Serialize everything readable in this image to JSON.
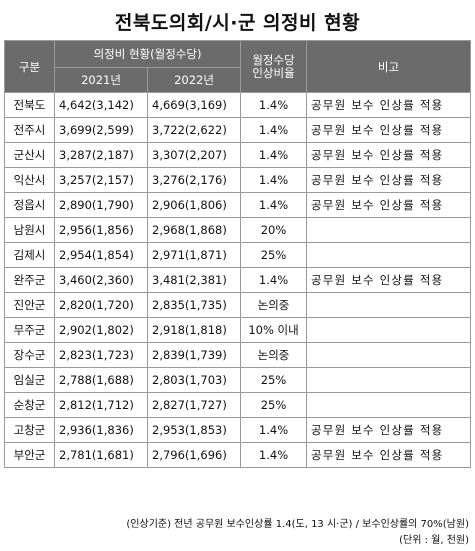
{
  "title": "전북도의회/시·군 의정비 현황",
  "headers": {
    "region": "구분",
    "allowance_group": "의정비 현황(월정수당)",
    "year_2021": "2021년",
    "year_2022": "2022년",
    "rate_line1": "월정수당",
    "rate_line2": "인상비율",
    "note": "비고"
  },
  "rows": [
    {
      "region": "전북도",
      "v2021": "4,642(3,142)",
      "v2022": "4,669(3,169)",
      "rate": "1.4%",
      "note": "공무원 보수 인상률 적용"
    },
    {
      "region": "전주시",
      "v2021": "3,699(2,599)",
      "v2022": "3,722(2,622)",
      "rate": "1.4%",
      "note": "공무원 보수 인상률 적용"
    },
    {
      "region": "군산시",
      "v2021": "3,287(2,187)",
      "v2022": "3,307(2,207)",
      "rate": "1.4%",
      "note": "공무원 보수 인상률 적용"
    },
    {
      "region": "익산시",
      "v2021": "3,257(2,157)",
      "v2022": "3,276(2,176)",
      "rate": "1.4%",
      "note": "공무원 보수 인상률 적용"
    },
    {
      "region": "정읍시",
      "v2021": "2,890(1,790)",
      "v2022": "2,906(1,806)",
      "rate": "1.4%",
      "note": "공무원 보수 인상률 적용"
    },
    {
      "region": "남원시",
      "v2021": "2,956(1,856)",
      "v2022": "2,968(1,868)",
      "rate": "20%",
      "note": ""
    },
    {
      "region": "김제시",
      "v2021": "2,954(1,854)",
      "v2022": "2,971(1,871)",
      "rate": "25%",
      "note": ""
    },
    {
      "region": "완주군",
      "v2021": "3,460(2,360)",
      "v2022": "3,481(2,381)",
      "rate": "1.4%",
      "note": "공무원 보수 인상률 적용"
    },
    {
      "region": "진안군",
      "v2021": "2,820(1,720)",
      "v2022": "2,835(1,735)",
      "rate": "논의중",
      "note": ""
    },
    {
      "region": "무주군",
      "v2021": "2,902(1,802)",
      "v2022": "2,918(1,818)",
      "rate": "10% 이내",
      "note": ""
    },
    {
      "region": "장수군",
      "v2021": "2,823(1,723)",
      "v2022": "2,839(1,739)",
      "rate": "논의중",
      "note": ""
    },
    {
      "region": "임실군",
      "v2021": "2,788(1,688)",
      "v2022": "2,803(1,703)",
      "rate": "25%",
      "note": ""
    },
    {
      "region": "순창군",
      "v2021": "2,812(1,712)",
      "v2022": "2,827(1,727)",
      "rate": "25%",
      "note": ""
    },
    {
      "region": "고창군",
      "v2021": "2,936(1,836)",
      "v2022": "2,953(1,853)",
      "rate": "1.4%",
      "note": "공무원 보수 인상률 적용"
    },
    {
      "region": "부안군",
      "v2021": "2,781(1,681)",
      "v2022": "2,796(1,696)",
      "rate": "1.4%",
      "note": "공무원 보수 인상률 적용"
    }
  ],
  "footnote": "(인상기준) 전년 공무원 보수인상률 1.4(도, 13 시·군) / 보수인상률의 70%(남원)",
  "unit": "(단위 : 월, 천원)",
  "colors": {
    "header_bg": "#6b6b6b",
    "header_text": "#ffffff",
    "border": "#9a9a9a"
  }
}
